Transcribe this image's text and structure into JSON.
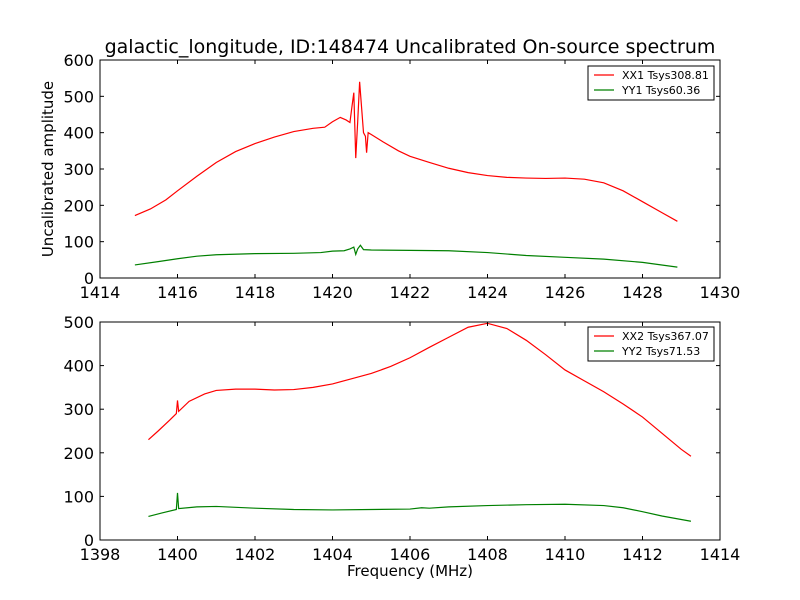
{
  "title": "galactic_longitude, ID:148474 Uncalibrated On-source spectrum",
  "xlabel": "Frequency (MHz)",
  "colors": {
    "xx": "#ff0000",
    "yy": "#008000"
  },
  "chart_data": [
    {
      "type": "line",
      "ylabel": "Uncalibrated amplitude",
      "xlim": [
        1414,
        1430
      ],
      "ylim": [
        0,
        600
      ],
      "xticks": [
        1414,
        1416,
        1418,
        1420,
        1422,
        1424,
        1426,
        1428,
        1430
      ],
      "yticks": [
        0,
        100,
        200,
        300,
        400,
        500,
        600
      ],
      "legend": "top-right",
      "series": [
        {
          "name": "XX1 Tsys308.81",
          "color": "#ff0000",
          "points": [
            [
              1414.9,
              172
            ],
            [
              1415.3,
              190
            ],
            [
              1415.7,
              215
            ],
            [
              1416.0,
              240
            ],
            [
              1416.5,
              280
            ],
            [
              1417.0,
              318
            ],
            [
              1417.5,
              348
            ],
            [
              1418.0,
              370
            ],
            [
              1418.5,
              388
            ],
            [
              1419.0,
              403
            ],
            [
              1419.5,
              412
            ],
            [
              1419.8,
              415
            ],
            [
              1420.0,
              430
            ],
            [
              1420.2,
              442
            ],
            [
              1420.35,
              435
            ],
            [
              1420.45,
              428
            ],
            [
              1420.5,
              470
            ],
            [
              1420.55,
              510
            ],
            [
              1420.6,
              330
            ],
            [
              1420.65,
              430
            ],
            [
              1420.7,
              540
            ],
            [
              1420.75,
              470
            ],
            [
              1420.8,
              400
            ],
            [
              1420.85,
              390
            ],
            [
              1420.88,
              345
            ],
            [
              1420.92,
              400
            ],
            [
              1421.0,
              395
            ],
            [
              1421.3,
              375
            ],
            [
              1421.7,
              350
            ],
            [
              1422.0,
              335
            ],
            [
              1422.5,
              318
            ],
            [
              1423.0,
              302
            ],
            [
              1423.5,
              290
            ],
            [
              1424.0,
              282
            ],
            [
              1424.5,
              277
            ],
            [
              1425.0,
              275
            ],
            [
              1425.5,
              274
            ],
            [
              1426.0,
              275
            ],
            [
              1426.5,
              272
            ],
            [
              1427.0,
              262
            ],
            [
              1427.5,
              240
            ],
            [
              1428.0,
              210
            ],
            [
              1428.5,
              180
            ],
            [
              1428.9,
              156
            ]
          ]
        },
        {
          "name": "YY1 Tsys60.36",
          "color": "#008000",
          "points": [
            [
              1414.9,
              36
            ],
            [
              1415.5,
              45
            ],
            [
              1416.0,
              53
            ],
            [
              1416.5,
              60
            ],
            [
              1417.0,
              64
            ],
            [
              1418.0,
              67
            ],
            [
              1419.0,
              68
            ],
            [
              1419.7,
              70
            ],
            [
              1420.0,
              74
            ],
            [
              1420.3,
              75
            ],
            [
              1420.45,
              80
            ],
            [
              1420.55,
              85
            ],
            [
              1420.6,
              65
            ],
            [
              1420.65,
              80
            ],
            [
              1420.72,
              90
            ],
            [
              1420.8,
              78
            ],
            [
              1421.0,
              77
            ],
            [
              1422.0,
              76
            ],
            [
              1423.0,
              75
            ],
            [
              1424.0,
              70
            ],
            [
              1425.0,
              62
            ],
            [
              1426.0,
              57
            ],
            [
              1427.0,
              52
            ],
            [
              1428.0,
              43
            ],
            [
              1428.9,
              30
            ]
          ]
        }
      ]
    },
    {
      "type": "line",
      "ylabel": "",
      "xlim": [
        1398,
        1414
      ],
      "ylim": [
        0,
        500
      ],
      "xticks": [
        1398,
        1400,
        1402,
        1404,
        1406,
        1408,
        1410,
        1412,
        1414
      ],
      "yticks": [
        0,
        100,
        200,
        300,
        400,
        500
      ],
      "legend": "top-right",
      "series": [
        {
          "name": "XX2 Tsys367.07",
          "color": "#ff0000",
          "points": [
            [
              1399.25,
              230
            ],
            [
              1399.5,
              250
            ],
            [
              1399.8,
              275
            ],
            [
              1399.97,
              290
            ],
            [
              1400.0,
              320
            ],
            [
              1400.03,
              295
            ],
            [
              1400.3,
              318
            ],
            [
              1400.7,
              335
            ],
            [
              1401.0,
              343
            ],
            [
              1401.5,
              346
            ],
            [
              1402.0,
              346
            ],
            [
              1402.5,
              344
            ],
            [
              1403.0,
              345
            ],
            [
              1403.5,
              350
            ],
            [
              1404.0,
              358
            ],
            [
              1404.5,
              370
            ],
            [
              1405.0,
              382
            ],
            [
              1405.5,
              398
            ],
            [
              1406.0,
              418
            ],
            [
              1406.5,
              442
            ],
            [
              1407.0,
              465
            ],
            [
              1407.5,
              488
            ],
            [
              1408.0,
              497
            ],
            [
              1408.5,
              485
            ],
            [
              1409.0,
              458
            ],
            [
              1409.5,
              425
            ],
            [
              1410.0,
              390
            ],
            [
              1410.5,
              365
            ],
            [
              1411.0,
              340
            ],
            [
              1411.5,
              312
            ],
            [
              1412.0,
              282
            ],
            [
              1412.5,
              245
            ],
            [
              1413.0,
              208
            ],
            [
              1413.25,
              192
            ]
          ]
        },
        {
          "name": "YY2 Tsys71.53",
          "color": "#008000",
          "points": [
            [
              1399.25,
              54
            ],
            [
              1399.6,
              62
            ],
            [
              1399.97,
              70
            ],
            [
              1400.0,
              108
            ],
            [
              1400.03,
              72
            ],
            [
              1400.5,
              76
            ],
            [
              1401.0,
              77
            ],
            [
              1402.0,
              73
            ],
            [
              1403.0,
              70
            ],
            [
              1404.0,
              69
            ],
            [
              1405.0,
              70
            ],
            [
              1406.0,
              71
            ],
            [
              1406.3,
              74
            ],
            [
              1406.5,
              73
            ],
            [
              1407.0,
              76
            ],
            [
              1408.0,
              79
            ],
            [
              1409.0,
              81
            ],
            [
              1410.0,
              82
            ],
            [
              1411.0,
              79
            ],
            [
              1411.5,
              74
            ],
            [
              1412.0,
              65
            ],
            [
              1412.5,
              55
            ],
            [
              1413.25,
              43
            ]
          ]
        }
      ]
    }
  ]
}
